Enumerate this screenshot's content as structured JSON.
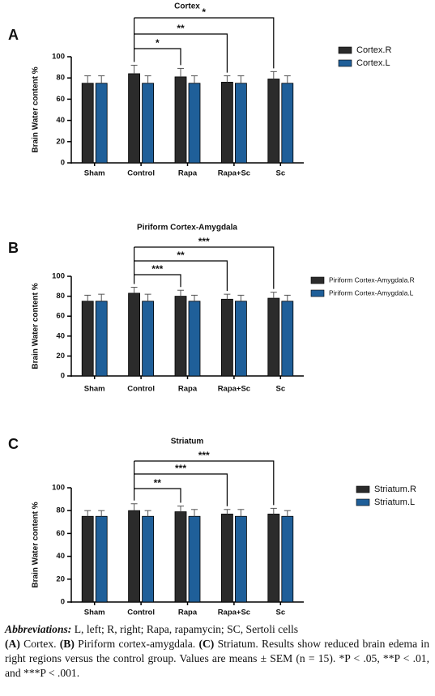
{
  "chart_data": [
    {
      "type": "bar",
      "panel_label": "A",
      "title": "Cortex",
      "y_label": "Brain Water content %",
      "categories": [
        "Sham",
        "Control",
        "Rapa",
        "Rapa+Sc",
        "Sc"
      ],
      "series": [
        {
          "name": "Cortex.R",
          "color": "#2b2b2b",
          "values": [
            75,
            84,
            81,
            76,
            79
          ],
          "errors": [
            7,
            8,
            8,
            6,
            7
          ]
        },
        {
          "name": "Cortex.L",
          "color": "#1f5f99",
          "values": [
            75,
            75,
            75,
            75,
            75
          ],
          "errors": [
            7,
            7,
            7,
            7,
            7
          ]
        }
      ],
      "ylim": [
        0,
        100
      ],
      "yticks": [
        0,
        20,
        40,
        60,
        80,
        100
      ],
      "annotations": [
        {
          "from": "Control",
          "to": "Rapa",
          "label": "*"
        },
        {
          "from": "Control",
          "to": "Rapa+Sc",
          "label": "**"
        },
        {
          "from": "Control",
          "to": "Sc",
          "label": "*"
        }
      ]
    },
    {
      "type": "bar",
      "panel_label": "B",
      "title": "Piriform Cortex-Amygdala",
      "y_label": "Brain Water content %",
      "categories": [
        "Sham",
        "Control",
        "Rapa",
        "Rapa+Sc",
        "Sc"
      ],
      "series": [
        {
          "name": "Piriform Cortex-Amygdala.R",
          "color": "#2b2b2b",
          "values": [
            75,
            83,
            80,
            77,
            78
          ],
          "errors": [
            6,
            6,
            6,
            5,
            6
          ]
        },
        {
          "name": "Piriform Cortex-Amygdala.L",
          "color": "#1f5f99",
          "values": [
            75,
            75,
            75,
            75,
            75
          ],
          "errors": [
            7,
            7,
            6,
            6,
            6
          ]
        }
      ],
      "ylim": [
        0,
        100
      ],
      "yticks": [
        0,
        20,
        40,
        60,
        80,
        100
      ],
      "annotations": [
        {
          "from": "Control",
          "to": "Rapa",
          "label": "***"
        },
        {
          "from": "Control",
          "to": "Rapa+Sc",
          "label": "**"
        },
        {
          "from": "Control",
          "to": "Sc",
          "label": "***"
        }
      ]
    },
    {
      "type": "bar",
      "panel_label": "C",
      "title": "Striatum",
      "y_label": "Brain Water content %",
      "categories": [
        "Sham",
        "Control",
        "Rapa",
        "Rapa+Sc",
        "Sc"
      ],
      "series": [
        {
          "name": "Striatum.R",
          "color": "#2b2b2b",
          "values": [
            75,
            80,
            79,
            77,
            77
          ],
          "errors": [
            5,
            6,
            5,
            4,
            5
          ]
        },
        {
          "name": "Striatum.L",
          "color": "#1f5f99",
          "values": [
            75,
            75,
            75,
            75,
            75
          ],
          "errors": [
            5,
            5,
            6,
            6,
            5
          ]
        }
      ],
      "ylim": [
        0,
        100
      ],
      "yticks": [
        0,
        20,
        40,
        60,
        80,
        100
      ],
      "annotations": [
        {
          "from": "Control",
          "to": "Rapa",
          "label": "**"
        },
        {
          "from": "Control",
          "to": "Rapa+Sc",
          "label": "***"
        },
        {
          "from": "Control",
          "to": "Sc",
          "label": "***"
        }
      ]
    }
  ],
  "caption": {
    "abbreviations_label": "Abbreviations:",
    "abbreviations_text": "L, left; R, right; Rapa, rapamycin; SC, Sertoli cells",
    "a_label": "(A)",
    "a_text": "Cortex.",
    "b_label": "(B)",
    "b_text": "Piriform cortex-amygdala.",
    "c_label": "(C)",
    "c_text": "Striatum. Results show reduced brain edema in right regions versus the control group. Values are means ± SEM (n = 15). *P < .05, **P < .01, and ***P < .001."
  }
}
